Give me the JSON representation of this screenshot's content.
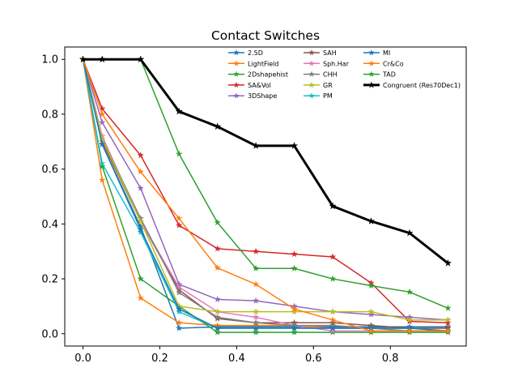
{
  "chart_data": {
    "type": "line",
    "title": "Contact Switches",
    "xlabel": "",
    "ylabel": "",
    "xlim": [
      -0.0475,
      0.9975
    ],
    "ylim": [
      -0.045,
      1.045
    ],
    "xticks": [
      0.0,
      0.2,
      0.4,
      0.6,
      0.8
    ],
    "xtick_labels": [
      "0.0",
      "0.2",
      "0.4",
      "0.6",
      "0.8"
    ],
    "yticks": [
      0.0,
      0.2,
      0.4,
      0.6,
      0.8,
      1.0
    ],
    "ytick_labels": [
      "0.0",
      "0.2",
      "0.4",
      "0.6",
      "0.8",
      "1.0"
    ],
    "grid": false,
    "legend_position": "top-right",
    "x": [
      0.0,
      0.05,
      0.15,
      0.25,
      0.35,
      0.45,
      0.55,
      0.65,
      0.75,
      0.85,
      0.95
    ],
    "series": [
      {
        "name": "2.5D",
        "color": "#1f77b4",
        "values": [
          1.0,
          0.69,
          0.39,
          0.02,
          0.025,
          0.025,
          0.025,
          0.025,
          0.025,
          0.025,
          0.025
        ]
      },
      {
        "name": "LightField",
        "color": "#ff7f0e",
        "values": [
          1.0,
          0.56,
          0.13,
          0.04,
          0.03,
          0.03,
          0.03,
          0.02,
          0.02,
          0.02,
          0.02
        ]
      },
      {
        "name": "2Dshapehist",
        "color": "#2ca02c",
        "values": [
          1.0,
          0.61,
          0.2,
          0.1,
          0.005,
          0.005,
          0.005,
          0.005,
          0.005,
          0.005,
          0.005
        ]
      },
      {
        "name": "SA&Vol",
        "color": "#d62728",
        "values": [
          1.0,
          0.82,
          0.65,
          0.395,
          0.31,
          0.3,
          0.29,
          0.28,
          0.185,
          0.045,
          0.04
        ]
      },
      {
        "name": "3DShape",
        "color": "#9467bd",
        "values": [
          1.0,
          0.77,
          0.53,
          0.18,
          0.125,
          0.12,
          0.1,
          0.08,
          0.07,
          0.06,
          0.05
        ]
      },
      {
        "name": "SAH",
        "color": "#8c564b",
        "values": [
          1.0,
          0.7,
          0.41,
          0.16,
          0.055,
          0.04,
          0.04,
          0.04,
          0.03,
          0.02,
          0.02
        ]
      },
      {
        "name": "Sph.Har",
        "color": "#e377c2",
        "values": [
          1.0,
          0.72,
          0.41,
          0.17,
          0.08,
          0.06,
          0.03,
          0.01,
          0.01,
          0.01,
          0.01
        ]
      },
      {
        "name": "CHH",
        "color": "#7f7f7f",
        "values": [
          1.0,
          0.71,
          0.42,
          0.15,
          0.06,
          0.04,
          0.03,
          0.03,
          0.02,
          0.01,
          0.01
        ]
      },
      {
        "name": "GR",
        "color": "#bcbd22",
        "values": [
          1.0,
          0.71,
          0.41,
          0.1,
          0.08,
          0.08,
          0.08,
          0.08,
          0.08,
          0.05,
          0.05
        ]
      },
      {
        "name": "PM",
        "color": "#17becf",
        "values": [
          1.0,
          0.62,
          0.37,
          0.08,
          0.02,
          0.02,
          0.02,
          0.02,
          0.02,
          0.02,
          0.01
        ]
      },
      {
        "name": "MI",
        "color": "#1f77b4",
        "values": [
          1.0,
          0.69,
          0.38,
          0.09,
          0.02,
          0.02,
          0.02,
          0.02,
          0.02,
          0.02,
          0.01
        ]
      },
      {
        "name": "Cr&Co",
        "color": "#ff7f0e",
        "values": [
          1.0,
          0.8,
          0.59,
          0.42,
          0.24,
          0.18,
          0.09,
          0.05,
          0.01,
          0.01,
          0.01
        ]
      },
      {
        "name": "TAD",
        "color": "#2ca02c",
        "values": [
          1.0,
          1.0,
          1.0,
          0.655,
          0.405,
          0.238,
          0.238,
          0.2,
          0.175,
          0.152,
          0.093
        ]
      },
      {
        "name": "Congruent (Res70Dec1)",
        "color": "#000000",
        "bold": true,
        "values": [
          1.0,
          1.0,
          1.0,
          0.81,
          0.755,
          0.685,
          0.685,
          0.465,
          0.41,
          0.367,
          0.257
        ]
      }
    ]
  }
}
